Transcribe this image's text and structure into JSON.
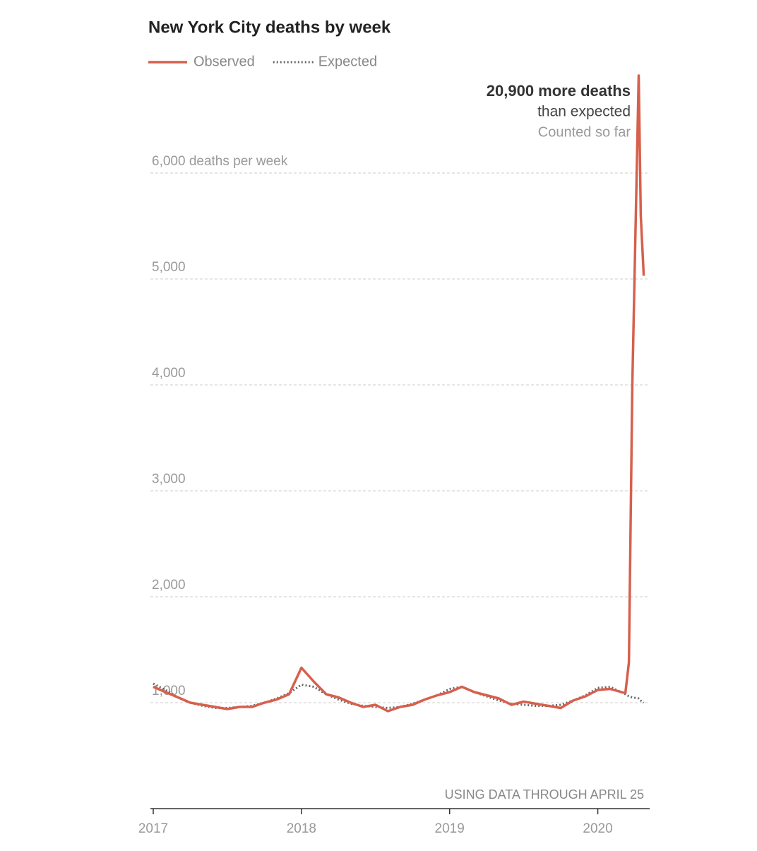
{
  "chart_data": {
    "type": "line",
    "title": "New York City deaths by week",
    "x": [
      2017,
      2017.083,
      2017.167,
      2017.25,
      2017.333,
      2017.417,
      2017.5,
      2017.583,
      2017.667,
      2017.75,
      2017.833,
      2017.917,
      2018,
      2018.083,
      2018.167,
      2018.25,
      2018.333,
      2018.417,
      2018.5,
      2018.583,
      2018.667,
      2018.75,
      2018.833,
      2018.917,
      2019,
      2019.083,
      2019.167,
      2019.25,
      2019.333,
      2019.417,
      2019.5,
      2019.583,
      2019.667,
      2019.75,
      2019.833,
      2019.917,
      2020,
      2020.083,
      2020.186,
      2020.21,
      2020.233,
      2020.276,
      2020.29,
      2020.31
    ],
    "series": [
      {
        "name": "Observed",
        "color": "#d6604d",
        "style": "solid",
        "values": [
          1150,
          1100,
          1050,
          1000,
          980,
          960,
          940,
          960,
          960,
          1000,
          1030,
          1080,
          1330,
          1200,
          1080,
          1050,
          1000,
          960,
          980,
          920,
          960,
          980,
          1030,
          1070,
          1100,
          1150,
          1100,
          1070,
          1040,
          980,
          1010,
          990,
          970,
          950,
          1020,
          1060,
          1120,
          1130,
          1090,
          1380,
          4000,
          6920,
          5600,
          5030
        ]
      },
      {
        "name": "Expected",
        "color": "#666666",
        "style": "dotted",
        "values": [
          1180,
          1120,
          1050,
          1000,
          970,
          950,
          950,
          960,
          970,
          1000,
          1040,
          1090,
          1170,
          1150,
          1080,
          1030,
          990,
          970,
          960,
          950,
          960,
          990,
          1030,
          1070,
          1130,
          1150,
          1100,
          1060,
          1020,
          990,
          980,
          970,
          970,
          980,
          1020,
          1070,
          1140,
          1150,
          1080,
          1060,
          1050,
          1040,
          1020,
          1000
        ]
      }
    ],
    "xlim": [
      2017,
      2020.35
    ],
    "xticks": [
      2017,
      2018,
      2019,
      2020
    ],
    "ylim": [
      0,
      7000
    ],
    "yticks": [
      {
        "value": 1000,
        "label": "1,000"
      },
      {
        "value": 2000,
        "label": "2,000"
      },
      {
        "value": 3000,
        "label": "3,000"
      },
      {
        "value": 4000,
        "label": "4,000"
      },
      {
        "value": 5000,
        "label": "5,000"
      },
      {
        "value": 6000,
        "label": "6,000 deaths per week"
      }
    ],
    "grid": true,
    "annotations": [
      "20,900 more deaths",
      "than expected",
      "Counted so far"
    ],
    "note": "USING DATA THROUGH APRIL 25"
  }
}
